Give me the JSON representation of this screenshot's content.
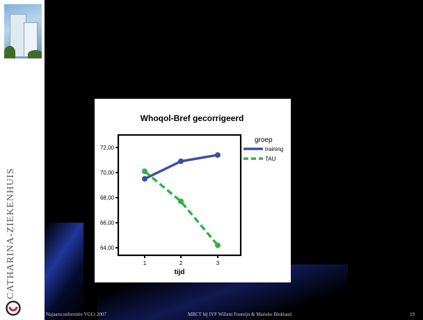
{
  "sidebar": {
    "brand_text": "CATHARINA-ZIEKENHUIS"
  },
  "chart_data": {
    "type": "line",
    "title": "Whoqol-Bref gecorrigeerd",
    "xlabel": "tijd",
    "ylabel": "",
    "x": [
      1,
      2,
      3
    ],
    "x_tick_labels": [
      "1",
      "2",
      "3"
    ],
    "y_tick_labels": [
      "64,00",
      "66,00",
      "68,00",
      "70,00",
      "72,00"
    ],
    "y_ticks": [
      64,
      66,
      68,
      70,
      72
    ],
    "ylim": [
      63.4,
      73.0
    ],
    "series": [
      {
        "name": "training",
        "values": [
          69.5,
          70.9,
          71.4
        ],
        "color": "#3b4fa0",
        "style": "solid"
      },
      {
        "name": "TAU",
        "values": [
          70.1,
          67.7,
          64.2
        ],
        "color": "#2db34a",
        "style": "dashed"
      }
    ],
    "legend": {
      "title": "groep",
      "placement": "right"
    },
    "grid": false
  },
  "footer": {
    "left": "Najaarsconferentie VGCt 2007",
    "center": "MBCT bij IVF Willem Fonteijn & Marieke Blokland",
    "page_number": "19"
  },
  "colors": {
    "background": "#000000",
    "sidebar": "#ffffff",
    "accent_blue": "#2a3ca8"
  }
}
